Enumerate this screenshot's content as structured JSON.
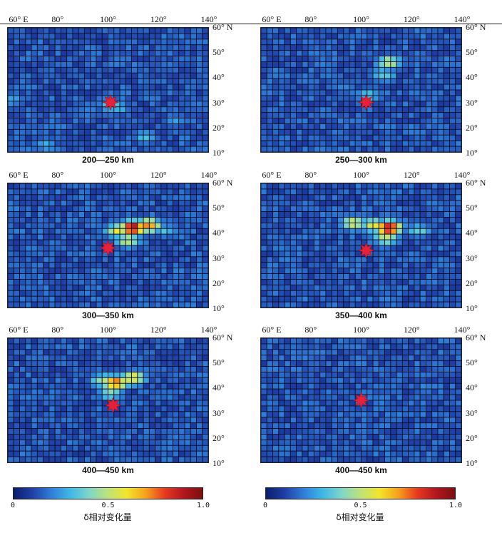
{
  "chart_data": {
    "type": "heatmap",
    "x_ticks": [
      "60° E",
      "80°",
      "100°",
      "120°",
      "140°"
    ],
    "y_ticks": [
      "60° N",
      "50°",
      "40°",
      "30°",
      "20°",
      "10°"
    ],
    "x_range": [
      60,
      140
    ],
    "y_range": [
      10,
      60
    ],
    "colorbar": {
      "ticks": [
        "0",
        "0.5",
        "1.0"
      ],
      "range": [
        0,
        1
      ],
      "title": "δ相对变化量",
      "colors": [
        "#0b1e6e",
        "#1f3fa6",
        "#2f7fd8",
        "#3fb8e6",
        "#7fd6c8",
        "#bde37a",
        "#f2e52a",
        "#f6a11d",
        "#e8391f",
        "#b3161e",
        "#7a1010"
      ]
    },
    "epicenter_color": "#e8213a",
    "panels": [
      {
        "caption": "200—250 km",
        "epicenter": [
          101,
          30
        ],
        "hotspots": [
          [
            101,
            29,
            0.35
          ],
          [
            104,
            28,
            0.28
          ],
          [
            115,
            16,
            0.3
          ],
          [
            75,
            13,
            0.28
          ],
          [
            62,
            31,
            0.25
          ],
          [
            127,
            23,
            0.22
          ],
          [
            92,
            26,
            0.2
          ]
        ]
      },
      {
        "caption": "250—300 km",
        "epicenter": [
          102,
          30
        ],
        "hotspots": [
          [
            111,
            46,
            0.5
          ],
          [
            109,
            41,
            0.35
          ],
          [
            103,
            33,
            0.32
          ],
          [
            93,
            36,
            0.2
          ],
          [
            128,
            21,
            0.15
          ]
        ]
      },
      {
        "caption": "300—350 km",
        "epicenter": [
          100,
          34
        ],
        "hotspots": [
          [
            110,
            42,
            0.92
          ],
          [
            116,
            43,
            0.7
          ],
          [
            104,
            41,
            0.55
          ],
          [
            108,
            37,
            0.5
          ],
          [
            123,
            41,
            0.3
          ]
        ]
      },
      {
        "caption": "350—400 km",
        "epicenter": [
          102,
          33
        ],
        "hotspots": [
          [
            111,
            42,
            0.9
          ],
          [
            105,
            43,
            0.55
          ],
          [
            97,
            44,
            0.55
          ],
          [
            110,
            38,
            0.5
          ],
          [
            123,
            41,
            0.35
          ]
        ]
      },
      {
        "caption": "400—450 km",
        "epicenter": [
          102,
          33
        ],
        "hotspots": [
          [
            103,
            42,
            0.75
          ],
          [
            110,
            44,
            0.6
          ],
          [
            98,
            43,
            0.45
          ],
          [
            101,
            38,
            0.4
          ]
        ]
      },
      {
        "caption": "400—450 km",
        "epicenter": [
          100,
          35
        ],
        "hotspots": [
          [
            103,
            37,
            0.2
          ],
          [
            126,
            40,
            0.2
          ],
          [
            70,
            16,
            0.18
          ],
          [
            115,
            30,
            0.15
          ]
        ]
      }
    ]
  }
}
